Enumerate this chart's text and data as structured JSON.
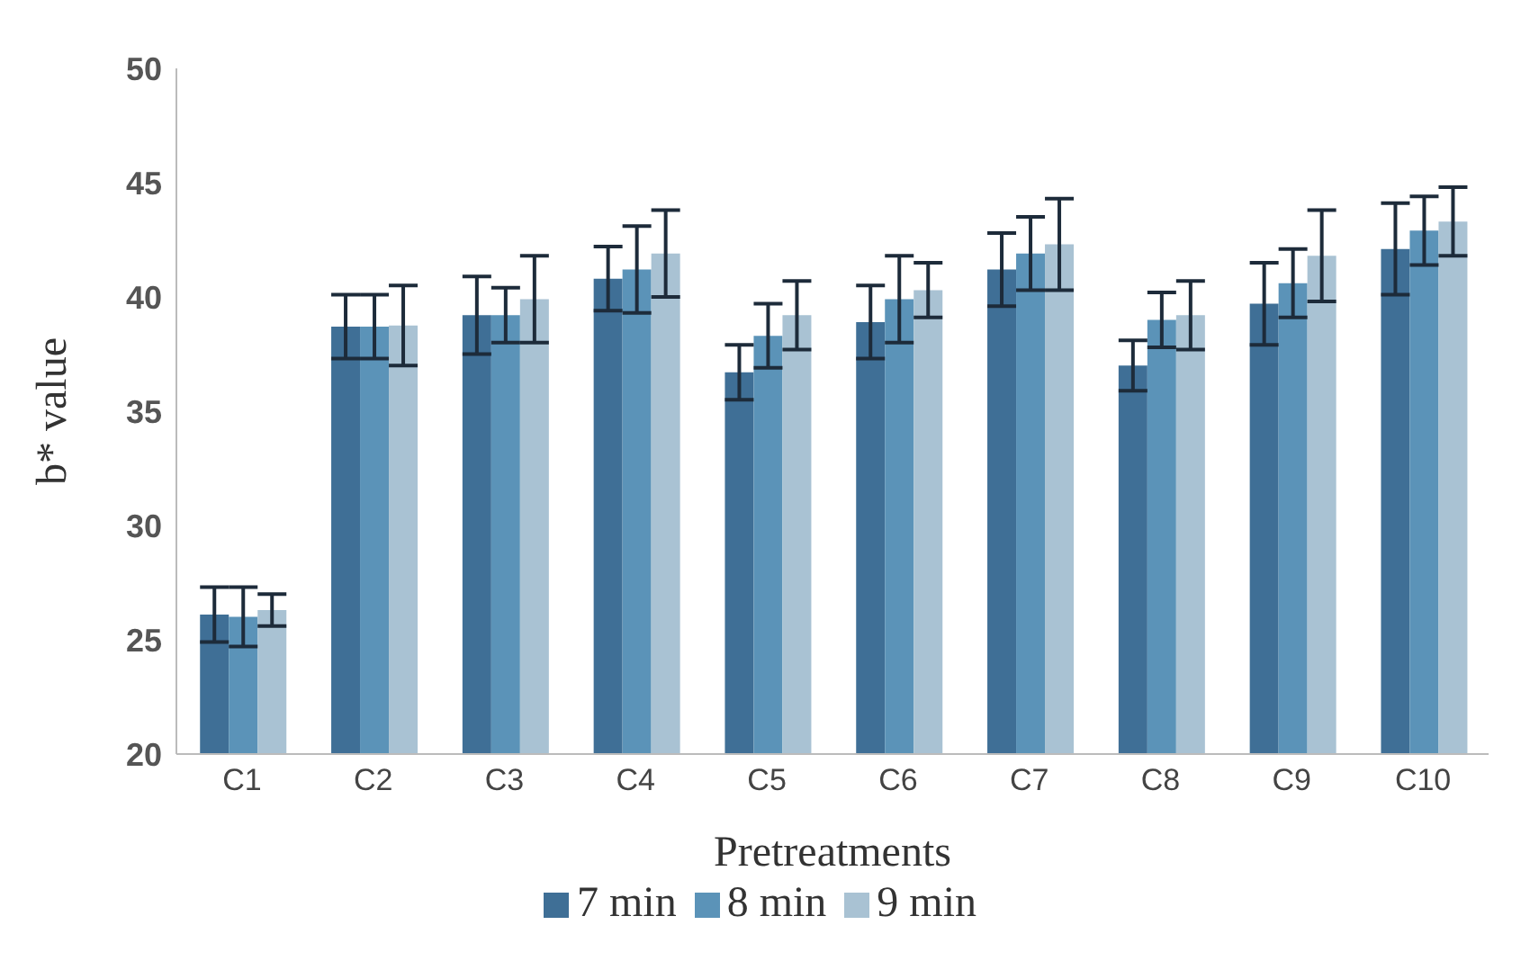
{
  "chart_data": {
    "type": "bar",
    "xlabel": "Pretreatments",
    "ylabel": "b* value",
    "categories": [
      "C1",
      "C2",
      "C3",
      "C4",
      "C5",
      "C6",
      "C7",
      "C8",
      "C9",
      "C10"
    ],
    "series": [
      {
        "name": "7 min",
        "color": "#3f6f96",
        "values": [
          26.1,
          38.7,
          39.2,
          40.8,
          36.7,
          38.9,
          41.2,
          37.0,
          39.7,
          42.1
        ],
        "errors": [
          1.2,
          1.4,
          1.7,
          1.4,
          1.2,
          1.6,
          1.6,
          1.1,
          1.8,
          2.0
        ]
      },
      {
        "name": "8 min",
        "color": "#5b93b8",
        "values": [
          26.0,
          38.7,
          39.2,
          41.2,
          38.3,
          39.9,
          41.9,
          39.0,
          40.6,
          42.9
        ],
        "errors": [
          1.3,
          1.4,
          1.2,
          1.9,
          1.4,
          1.9,
          1.6,
          1.2,
          1.5,
          1.5
        ]
      },
      {
        "name": "9 min",
        "color": "#a9c2d3",
        "values": [
          26.3,
          38.75,
          39.9,
          41.9,
          39.2,
          40.3,
          42.3,
          39.2,
          41.8,
          43.3
        ],
        "errors": [
          0.7,
          1.75,
          1.9,
          1.9,
          1.5,
          1.2,
          2.0,
          1.5,
          2.0,
          1.5
        ]
      }
    ],
    "ylim": [
      20,
      50
    ],
    "yticks": [
      20,
      25,
      30,
      35,
      40,
      45,
      50
    ],
    "grid": false,
    "legend": "bottom"
  }
}
